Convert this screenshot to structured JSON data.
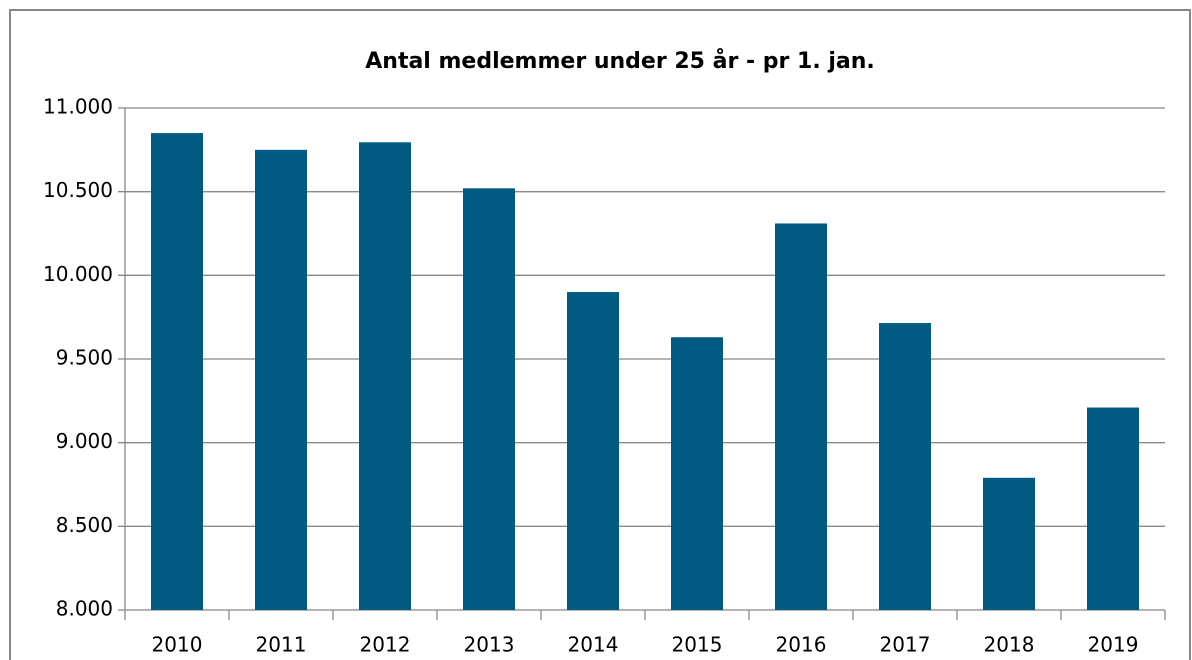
{
  "chart_data": {
    "type": "bar",
    "title": "Antal medlemmer under 25 år - pr 1. jan.",
    "categories": [
      "2010",
      "2011",
      "2012",
      "2013",
      "2014",
      "2015",
      "2016",
      "2017",
      "2018",
      "2019"
    ],
    "values": [
      10850,
      10750,
      10795,
      10520,
      9900,
      9630,
      10310,
      9715,
      8790,
      9210
    ],
    "color": "#005a82",
    "ylim": [
      8000,
      11000
    ],
    "yticks": [
      {
        "value": 8000,
        "label": "8.000"
      },
      {
        "value": 8500,
        "label": "8.500"
      },
      {
        "value": 9000,
        "label": "9.000"
      },
      {
        "value": 9500,
        "label": "9.500"
      },
      {
        "value": 10000,
        "label": "10.000"
      },
      {
        "value": 10500,
        "label": "10.500"
      },
      {
        "value": 11000,
        "label": "11.000"
      }
    ],
    "grid": true
  }
}
